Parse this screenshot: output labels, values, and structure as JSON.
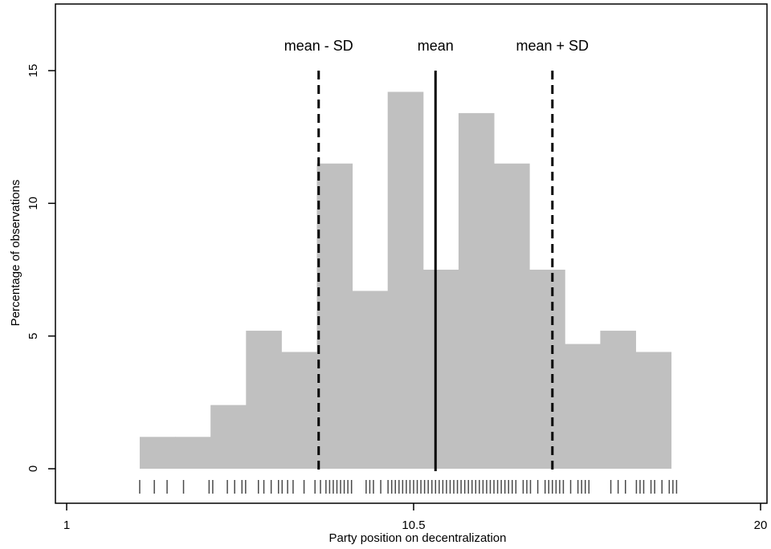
{
  "chart_data": {
    "type": "bar",
    "subtype": "histogram",
    "xlabel": "Party position on decentralization",
    "ylabel": "Percentage of observations",
    "xlim": [
      1,
      20
    ],
    "ylim": [
      0,
      15
    ],
    "x_ticks": [
      {
        "value": 1,
        "label": "1"
      },
      {
        "value": 10.5,
        "label": "10.5"
      },
      {
        "value": 20,
        "label": "20"
      }
    ],
    "y_ticks": [
      {
        "value": 0,
        "label": "0"
      },
      {
        "value": 5,
        "label": "5"
      },
      {
        "value": 10,
        "label": "10"
      },
      {
        "value": 15,
        "label": "15"
      }
    ],
    "bin_width": 0.97,
    "bins": [
      {
        "start": 3.0,
        "value": 1.2
      },
      {
        "start": 3.97,
        "value": 1.2
      },
      {
        "start": 4.94,
        "value": 2.4
      },
      {
        "start": 5.91,
        "value": 5.2
      },
      {
        "start": 6.88,
        "value": 4.4
      },
      {
        "start": 7.85,
        "value": 11.5
      },
      {
        "start": 8.82,
        "value": 6.7
      },
      {
        "start": 9.79,
        "value": 14.2
      },
      {
        "start": 10.76,
        "value": 7.5
      },
      {
        "start": 11.73,
        "value": 13.4
      },
      {
        "start": 12.7,
        "value": 11.5
      },
      {
        "start": 13.67,
        "value": 7.5
      },
      {
        "start": 14.64,
        "value": 4.7
      },
      {
        "start": 15.61,
        "value": 5.2
      },
      {
        "start": 16.58,
        "value": 4.4
      }
    ],
    "reference_lines": [
      {
        "value": 7.9,
        "label": "mean - SD",
        "style": "dashed"
      },
      {
        "value": 11.1,
        "label": "mean",
        "style": "solid"
      },
      {
        "value": 14.3,
        "label": "mean + SD",
        "style": "dashed"
      }
    ],
    "rug": [
      3.0,
      3.4,
      3.75,
      4.2,
      4.9,
      5.0,
      5.4,
      5.6,
      5.8,
      5.9,
      6.25,
      6.4,
      6.6,
      6.8,
      6.9,
      7.05,
      7.2,
      7.5,
      7.8,
      7.95,
      8.1,
      8.2,
      8.3,
      8.4,
      8.5,
      8.6,
      8.7,
      8.8,
      9.2,
      9.3,
      9.4,
      9.6,
      9.8,
      9.9,
      10.0,
      10.1,
      10.2,
      10.3,
      10.4,
      10.5,
      10.6,
      10.7,
      10.8,
      10.9,
      11.0,
      11.1,
      11.2,
      11.3,
      11.4,
      11.5,
      11.6,
      11.7,
      11.8,
      11.9,
      12.0,
      12.1,
      12.2,
      12.3,
      12.4,
      12.5,
      12.6,
      12.7,
      12.8,
      12.9,
      13.0,
      13.1,
      13.2,
      13.3,
      13.5,
      13.6,
      13.7,
      13.9,
      14.1,
      14.2,
      14.3,
      14.4,
      14.5,
      14.6,
      14.8,
      15.0,
      15.1,
      15.2,
      15.3,
      15.9,
      16.1,
      16.3,
      16.6,
      16.7,
      16.8,
      17.0,
      17.1,
      17.3,
      17.5,
      17.6,
      17.7
    ],
    "colors": {
      "bar": "#c0c0c0",
      "line": "#000000",
      "rug": "#4a4a4a"
    },
    "grid": false,
    "legend": "none"
  }
}
